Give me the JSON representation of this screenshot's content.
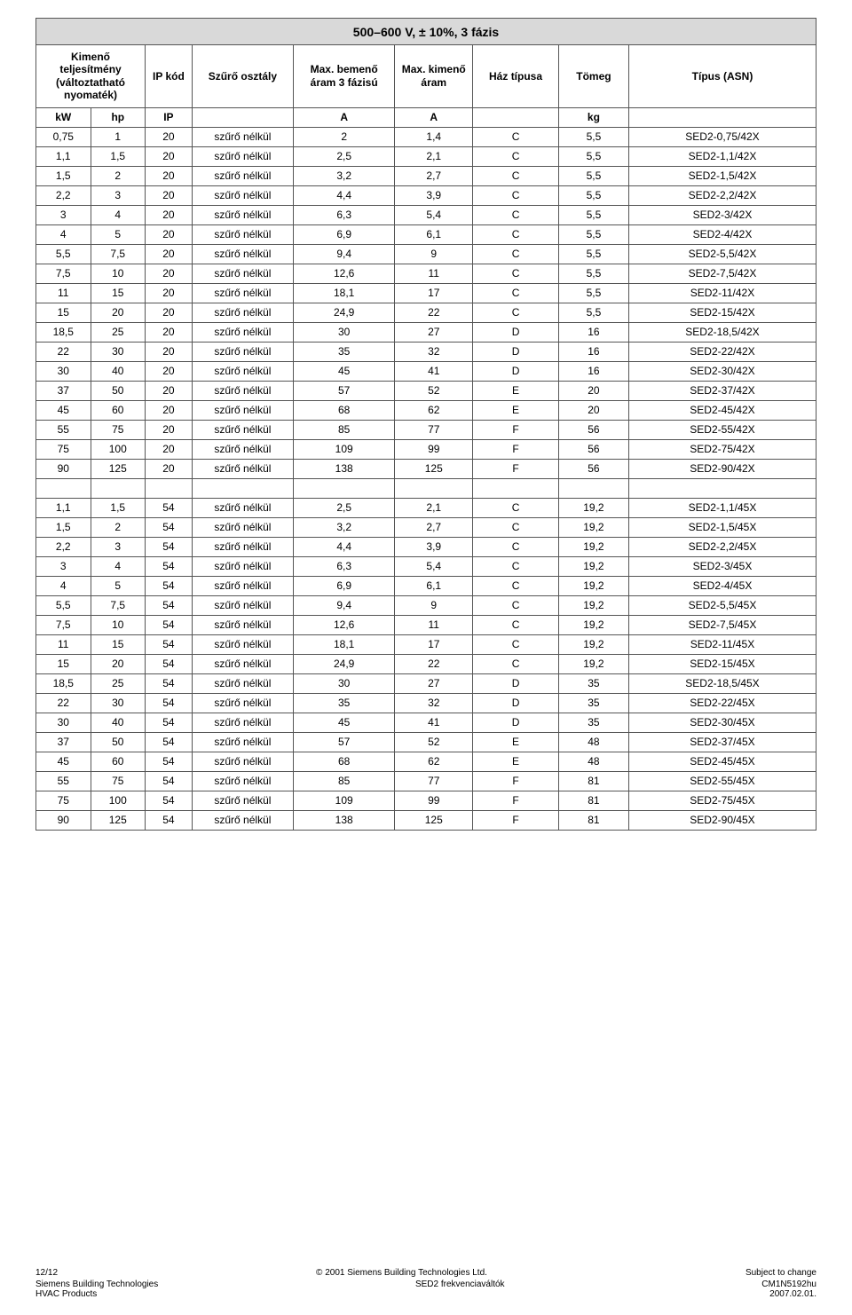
{
  "title": "500–600 V, ± 10%, 3 fázis",
  "headers": {
    "c1": "Kimenő teljesítmény (változtatható nyomaték)",
    "c2": "IP kód",
    "c3": "Szűrő osztály",
    "c4": "Max. bemenő áram 3 fázisú",
    "c5": "Max. kimenő áram",
    "c6": "Ház típusa",
    "c7": "Tömeg",
    "c8": "Típus (ASN)"
  },
  "units": {
    "u1": "kW",
    "u2": "hp",
    "u3": "IP",
    "u4": "",
    "u5": "A",
    "u6": "A",
    "u7": "",
    "u8": "kg",
    "u9": ""
  },
  "rows": [
    [
      "0,75",
      "1",
      "20",
      "szűrő nélkül",
      "2",
      "1,4",
      "C",
      "5,5",
      "SED2-0,75/42X"
    ],
    [
      "1,1",
      "1,5",
      "20",
      "szűrő nélkül",
      "2,5",
      "2,1",
      "C",
      "5,5",
      "SED2-1,1/42X"
    ],
    [
      "1,5",
      "2",
      "20",
      "szűrő nélkül",
      "3,2",
      "2,7",
      "C",
      "5,5",
      "SED2-1,5/42X"
    ],
    [
      "2,2",
      "3",
      "20",
      "szűrő nélkül",
      "4,4",
      "3,9",
      "C",
      "5,5",
      "SED2-2,2/42X"
    ],
    [
      "3",
      "4",
      "20",
      "szűrő nélkül",
      "6,3",
      "5,4",
      "C",
      "5,5",
      "SED2-3/42X"
    ],
    [
      "4",
      "5",
      "20",
      "szűrő nélkül",
      "6,9",
      "6,1",
      "C",
      "5,5",
      "SED2-4/42X"
    ],
    [
      "5,5",
      "7,5",
      "20",
      "szűrő nélkül",
      "9,4",
      "9",
      "C",
      "5,5",
      "SED2-5,5/42X"
    ],
    [
      "7,5",
      "10",
      "20",
      "szűrő nélkül",
      "12,6",
      "11",
      "C",
      "5,5",
      "SED2-7,5/42X"
    ],
    [
      "11",
      "15",
      "20",
      "szűrő nélkül",
      "18,1",
      "17",
      "C",
      "5,5",
      "SED2-11/42X"
    ],
    [
      "15",
      "20",
      "20",
      "szűrő nélkül",
      "24,9",
      "22",
      "C",
      "5,5",
      "SED2-15/42X"
    ],
    [
      "18,5",
      "25",
      "20",
      "szűrő nélkül",
      "30",
      "27",
      "D",
      "16",
      "SED2-18,5/42X"
    ],
    [
      "22",
      "30",
      "20",
      "szűrő nélkül",
      "35",
      "32",
      "D",
      "16",
      "SED2-22/42X"
    ],
    [
      "30",
      "40",
      "20",
      "szűrő nélkül",
      "45",
      "41",
      "D",
      "16",
      "SED2-30/42X"
    ],
    [
      "37",
      "50",
      "20",
      "szűrő nélkül",
      "57",
      "52",
      "E",
      "20",
      "SED2-37/42X"
    ],
    [
      "45",
      "60",
      "20",
      "szűrő nélkül",
      "68",
      "62",
      "E",
      "20",
      "SED2-45/42X"
    ],
    [
      "55",
      "75",
      "20",
      "szűrő nélkül",
      "85",
      "77",
      "F",
      "56",
      "SED2-55/42X"
    ],
    [
      "75",
      "100",
      "20",
      "szűrő nélkül",
      "109",
      "99",
      "F",
      "56",
      "SED2-75/42X"
    ],
    [
      "90",
      "125",
      "20",
      "szűrő nélkül",
      "138",
      "125",
      "F",
      "56",
      "SED2-90/42X"
    ]
  ],
  "rows2": [
    [
      "1,1",
      "1,5",
      "54",
      "szűrő nélkül",
      "2,5",
      "2,1",
      "C",
      "19,2",
      "SED2-1,1/45X"
    ],
    [
      "1,5",
      "2",
      "54",
      "szűrő nélkül",
      "3,2",
      "2,7",
      "C",
      "19,2",
      "SED2-1,5/45X"
    ],
    [
      "2,2",
      "3",
      "54",
      "szűrő nélkül",
      "4,4",
      "3,9",
      "C",
      "19,2",
      "SED2-2,2/45X"
    ],
    [
      "3",
      "4",
      "54",
      "szűrő nélkül",
      "6,3",
      "5,4",
      "C",
      "19,2",
      "SED2-3/45X"
    ],
    [
      "4",
      "5",
      "54",
      "szűrő nélkül",
      "6,9",
      "6,1",
      "C",
      "19,2",
      "SED2-4/45X"
    ],
    [
      "5,5",
      "7,5",
      "54",
      "szűrő nélkül",
      "9,4",
      "9",
      "C",
      "19,2",
      "SED2-5,5/45X"
    ],
    [
      "7,5",
      "10",
      "54",
      "szűrő nélkül",
      "12,6",
      "11",
      "C",
      "19,2",
      "SED2-7,5/45X"
    ],
    [
      "11",
      "15",
      "54",
      "szűrő nélkül",
      "18,1",
      "17",
      "C",
      "19,2",
      "SED2-11/45X"
    ],
    [
      "15",
      "20",
      "54",
      "szűrő nélkül",
      "24,9",
      "22",
      "C",
      "19,2",
      "SED2-15/45X"
    ],
    [
      "18,5",
      "25",
      "54",
      "szűrő nélkül",
      "30",
      "27",
      "D",
      "35",
      "SED2-18,5/45X"
    ],
    [
      "22",
      "30",
      "54",
      "szűrő nélkül",
      "35",
      "32",
      "D",
      "35",
      "SED2-22/45X"
    ],
    [
      "30",
      "40",
      "54",
      "szűrő nélkül",
      "45",
      "41",
      "D",
      "35",
      "SED2-30/45X"
    ],
    [
      "37",
      "50",
      "54",
      "szűrő nélkül",
      "57",
      "52",
      "E",
      "48",
      "SED2-37/45X"
    ],
    [
      "45",
      "60",
      "54",
      "szűrő nélkül",
      "68",
      "62",
      "E",
      "48",
      "SED2-45/45X"
    ],
    [
      "55",
      "75",
      "54",
      "szűrő nélkül",
      "85",
      "77",
      "F",
      "81",
      "SED2-55/45X"
    ],
    [
      "75",
      "100",
      "54",
      "szűrő nélkül",
      "109",
      "99",
      "F",
      "81",
      "SED2-75/45X"
    ],
    [
      "90",
      "125",
      "54",
      "szűrő nélkül",
      "138",
      "125",
      "F",
      "81",
      "SED2-90/45X"
    ]
  ],
  "footer": {
    "page": "12/12",
    "copyright": "© 2001 Siemens Building Technologies Ltd.",
    "subject": "Subject to change",
    "left2": "Siemens Building Technologies",
    "left3": "HVAC Products",
    "center2": "SED2 frekvenciaváltók",
    "right2": "CM1N5192hu",
    "right3": "2007.02.01."
  },
  "colors": {
    "header_bg": "#d9d9d9",
    "border": "#555555",
    "text": "#000000",
    "bg": "#ffffff"
  },
  "col_widths_pct": [
    7,
    7,
    6,
    13,
    13,
    10,
    11,
    9,
    24
  ]
}
